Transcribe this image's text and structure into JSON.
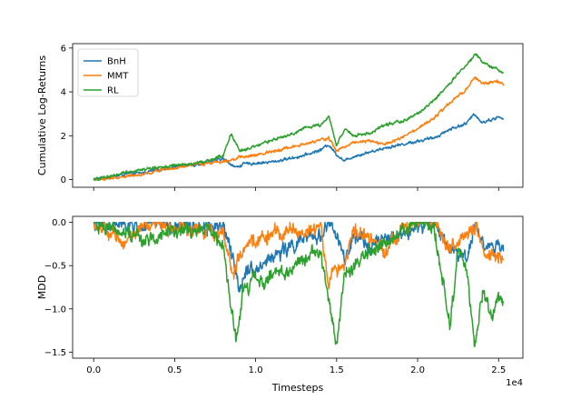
{
  "chart_data": [
    {
      "type": "line",
      "xlabel": "",
      "ylabel": "Cumulative Log-Returns",
      "xlim": [
        -1300,
        26500
      ],
      "ylim": [
        -0.35,
        6.2
      ],
      "xticks": [
        0,
        5000,
        10000,
        15000,
        20000,
        25000
      ],
      "yticks": [
        0,
        2,
        4,
        6
      ],
      "ytick_labels": [
        "0",
        "2",
        "4",
        "6"
      ],
      "legend_position": "upper-left",
      "grid": false,
      "series": [
        {
          "name": "BnH",
          "color": "#1f77b4",
          "x": [
            0,
            1000,
            2000,
            3000,
            4000,
            5000,
            6000,
            7000,
            8000,
            8800,
            9200,
            10000,
            11000,
            12000,
            13000,
            14000,
            14500,
            15000,
            15500,
            16000,
            17000,
            18000,
            19000,
            20000,
            21000,
            22000,
            23000,
            23500,
            24000,
            25000,
            25300
          ],
          "y": [
            0.0,
            0.1,
            0.25,
            0.3,
            0.45,
            0.6,
            0.65,
            0.8,
            0.95,
            0.55,
            0.7,
            0.75,
            0.8,
            0.95,
            1.1,
            1.35,
            1.6,
            1.15,
            0.85,
            1.05,
            1.25,
            1.45,
            1.6,
            1.75,
            1.9,
            2.3,
            2.55,
            3.0,
            2.6,
            2.85,
            2.75
          ]
        },
        {
          "name": "MMT",
          "color": "#ff7f0e",
          "x": [
            0,
            1000,
            2000,
            3000,
            4000,
            5000,
            6000,
            7000,
            8000,
            9000,
            10000,
            11000,
            12000,
            13000,
            14000,
            14500,
            15000,
            16000,
            17000,
            18000,
            19000,
            20000,
            21000,
            22000,
            23000,
            23500,
            24000,
            25000,
            25300
          ],
          "y": [
            0.0,
            0.05,
            0.15,
            0.25,
            0.4,
            0.5,
            0.65,
            0.75,
            0.85,
            1.0,
            1.1,
            1.3,
            1.45,
            1.6,
            1.8,
            1.9,
            1.3,
            1.7,
            1.8,
            1.6,
            1.9,
            2.3,
            2.8,
            3.5,
            4.1,
            4.65,
            4.4,
            4.45,
            4.3
          ]
        },
        {
          "name": "RL",
          "color": "#2ca02c",
          "x": [
            0,
            1000,
            2000,
            3000,
            4000,
            5000,
            6000,
            7000,
            8000,
            8500,
            9000,
            10000,
            11000,
            12000,
            13000,
            14000,
            14500,
            15000,
            15500,
            16000,
            17000,
            18000,
            19000,
            20000,
            21000,
            22000,
            23000,
            23600,
            24000,
            25000,
            25300
          ],
          "y": [
            0.0,
            0.15,
            0.35,
            0.45,
            0.55,
            0.65,
            0.7,
            0.85,
            1.1,
            2.1,
            1.3,
            1.5,
            1.8,
            2.0,
            2.35,
            2.5,
            2.9,
            1.6,
            2.3,
            2.0,
            2.1,
            2.5,
            2.65,
            3.0,
            3.6,
            4.4,
            5.2,
            5.75,
            5.3,
            5.0,
            4.9
          ]
        }
      ]
    },
    {
      "type": "line",
      "xlabel": "Timesteps",
      "ylabel": "MDD",
      "xlim": [
        -1300,
        26500
      ],
      "ylim": [
        -1.57,
        0.07
      ],
      "xticks": [
        0,
        5000,
        10000,
        15000,
        20000,
        25000
      ],
      "xtick_labels": [
        "0.0",
        "0.5",
        "1.0",
        "1.5",
        "2.0",
        "2.5"
      ],
      "x_offset_label": "1e4",
      "yticks": [
        0,
        -0.5,
        -1,
        -1.5
      ],
      "ytick_labels": [
        "0.0",
        "−0.5",
        "−1.0",
        "−1.5"
      ],
      "grid": false,
      "series": [
        {
          "name": "BnH",
          "color": "#1f77b4",
          "x": [
            0,
            1000,
            2000,
            3000,
            4000,
            5000,
            6000,
            7000,
            8000,
            8600,
            9000,
            9500,
            10000,
            11000,
            12000,
            13000,
            14000,
            14500,
            15000,
            15500,
            16000,
            17000,
            18000,
            19000,
            20000,
            21000,
            22000,
            23000,
            23600,
            24000,
            25000,
            25300
          ],
          "y": [
            0.0,
            -0.05,
            -0.02,
            -0.06,
            0.0,
            -0.08,
            -0.03,
            -0.05,
            -0.02,
            -0.45,
            -0.75,
            -0.5,
            -0.55,
            -0.4,
            -0.3,
            -0.2,
            -0.15,
            0.0,
            -0.15,
            -0.45,
            -0.2,
            -0.25,
            -0.2,
            -0.15,
            -0.05,
            0.0,
            -0.3,
            -0.4,
            0.0,
            -0.25,
            -0.3,
            -0.35
          ]
        },
        {
          "name": "MMT",
          "color": "#ff7f0e",
          "x": [
            0,
            1000,
            2000,
            3000,
            4000,
            5000,
            6000,
            7000,
            8000,
            8600,
            9000,
            10000,
            11000,
            12000,
            13000,
            14000,
            14500,
            14800,
            15000,
            15500,
            16000,
            17000,
            18000,
            19000,
            20000,
            21000,
            22000,
            23000,
            23600,
            24000,
            25000,
            25300
          ],
          "y": [
            0.0,
            -0.15,
            -0.22,
            -0.05,
            0.0,
            -0.1,
            -0.05,
            -0.12,
            -0.1,
            -0.6,
            -0.4,
            -0.2,
            -0.15,
            -0.08,
            -0.12,
            -0.05,
            -0.7,
            -0.55,
            -0.6,
            -0.45,
            -0.1,
            -0.2,
            -0.3,
            -0.1,
            0.0,
            0.0,
            -0.3,
            -0.15,
            -0.05,
            -0.35,
            -0.4,
            -0.5
          ]
        },
        {
          "name": "RL",
          "color": "#2ca02c",
          "x": [
            0,
            1000,
            2000,
            3000,
            4000,
            5000,
            6000,
            7000,
            8000,
            8500,
            8800,
            9200,
            10000,
            10500,
            11000,
            12000,
            13000,
            14000,
            14500,
            15000,
            15500,
            16000,
            17000,
            18000,
            19000,
            20000,
            21000,
            22000,
            22500,
            23000,
            23500,
            24000,
            24500,
            25000,
            25300
          ],
          "y": [
            0.0,
            -0.05,
            -0.1,
            -0.2,
            -0.15,
            -0.08,
            -0.12,
            -0.05,
            -0.3,
            -1.0,
            -1.4,
            -0.8,
            -0.65,
            -0.75,
            -0.55,
            -0.6,
            -0.4,
            -0.3,
            -0.9,
            -1.4,
            -0.6,
            -0.55,
            -0.35,
            -0.2,
            -0.1,
            0.0,
            -0.05,
            -1.2,
            -0.3,
            -0.5,
            -1.45,
            -0.8,
            -1.1,
            -0.85,
            -0.95
          ]
        }
      ]
    }
  ]
}
